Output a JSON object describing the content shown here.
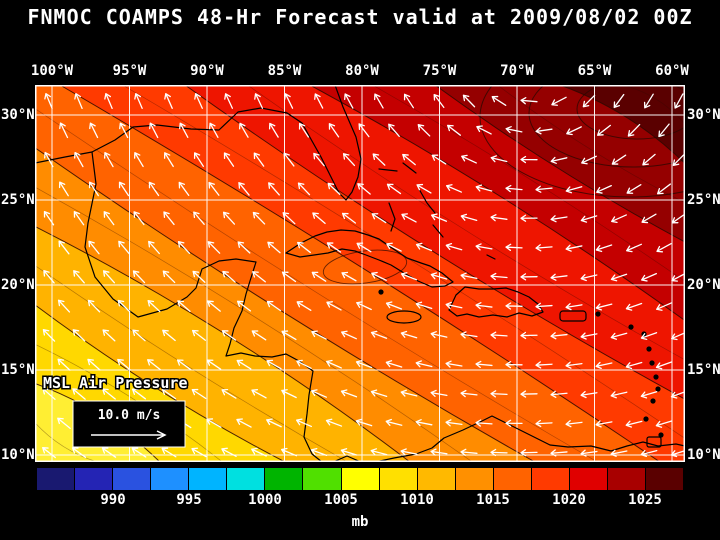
{
  "title": "FNMOC COAMPS 48-Hr Forecast valid at 2009/08/02 00Z",
  "map": {
    "lon_labels": [
      "100°W",
      "95°W",
      "90°W",
      "85°W",
      "80°W",
      "75°W",
      "70°W",
      "65°W",
      "60°W"
    ],
    "lat_labels": [
      "30°N",
      "25°N",
      "20°N",
      "15°N",
      "10°N"
    ],
    "overlay_label": "MSL Air Pressure",
    "wind_scale_label": "10.0 m/s",
    "grid_color": "#ffffff",
    "arrow_color": "#ffffff",
    "coastline_color": "#000000",
    "contour_color": "#2e0800",
    "band_colors": [
      "#ffee33",
      "#ffd800",
      "#ffb300",
      "#ff8c00",
      "#ff6300",
      "#ff3a00",
      "#ee1500",
      "#c40000",
      "#950000",
      "#5a0000"
    ],
    "band_approx_mb": [
      1006,
      1008,
      1010,
      1012,
      1014,
      1016,
      1018,
      1020,
      1022,
      1025
    ]
  },
  "colorbar": {
    "unit": "mb",
    "tick_labels": [
      "990",
      "995",
      "1000",
      "1005",
      "1010",
      "1015",
      "1020",
      "1025"
    ],
    "tick_values_mb": [
      990,
      995,
      1000,
      1005,
      1010,
      1015,
      1020,
      1025
    ],
    "cell_step_mb": 2.5,
    "cell_colors": [
      "#191970",
      "#2424b4",
      "#2a52e0",
      "#1e90ff",
      "#00b4ff",
      "#00e0e0",
      "#00b400",
      "#50e000",
      "#ffff00",
      "#ffe000",
      "#ffb900",
      "#ff9000",
      "#ff6300",
      "#ff3a00",
      "#e00000",
      "#a80000",
      "#5a0000"
    ]
  },
  "chart_data": {
    "type": "heatmap",
    "title": "FNMOC COAMPS 48-Hr Forecast valid at 2009/08/02 00Z",
    "field": "MSL Air Pressure",
    "units": "mb",
    "x_ticks": [
      "100°W",
      "95°W",
      "90°W",
      "85°W",
      "80°W",
      "75°W",
      "70°W",
      "65°W",
      "60°W"
    ],
    "y_ticks": [
      "30°N",
      "25°N",
      "20°N",
      "15°N",
      "10°N"
    ],
    "colorbar_ticks_mb": [
      990,
      995,
      1000,
      1005,
      1010,
      1015,
      1020,
      1025
    ],
    "visible_field_range_mb": [
      1006,
      1026
    ],
    "pattern": "Pressure increases from about 1006 mb (yellow) in the southwest corner to about 1026 mb (dark maroon) in the northeast corner; anticyclone centered beyond the northeast edge.",
    "wind_overlay": {
      "reference_arrow": "10.0 m/s",
      "color": "#ffffff",
      "description": "white wind vectors; easterly trade winds across the Caribbean curving anticyclonically around the Atlantic high"
    }
  }
}
